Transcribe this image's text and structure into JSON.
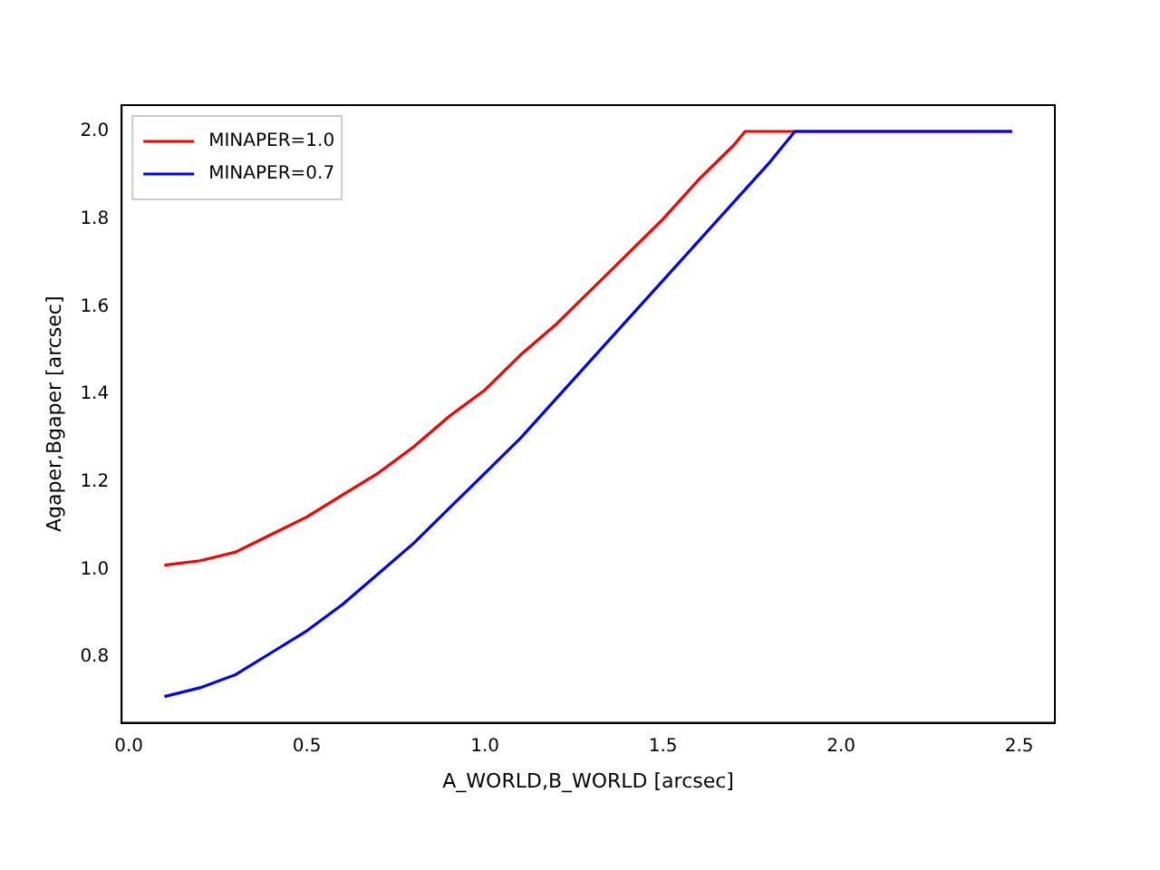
{
  "chart_data": {
    "type": "line",
    "xlabel": "A_WORLD,B_WORLD [arcsec]",
    "ylabel": "Agaper,Bgaper [arcsec]",
    "series": [
      {
        "name": "MINAPER=1.0",
        "color": "#ff0000",
        "x": [
          0.1,
          0.2,
          0.3,
          0.4,
          0.5,
          0.6,
          0.7,
          0.8,
          0.9,
          1.0,
          1.1,
          1.2,
          1.3,
          1.4,
          1.5,
          1.6,
          1.7,
          1.73,
          2.48
        ],
        "values": [
          1.01,
          1.02,
          1.04,
          1.08,
          1.12,
          1.17,
          1.22,
          1.28,
          1.35,
          1.41,
          1.49,
          1.56,
          1.64,
          1.72,
          1.8,
          1.89,
          1.97,
          2.0,
          2.0
        ]
      },
      {
        "name": "MINAPER=0.7",
        "color": "#0000ff",
        "x": [
          0.1,
          0.2,
          0.3,
          0.4,
          0.5,
          0.6,
          0.7,
          0.8,
          0.9,
          1.0,
          1.1,
          1.2,
          1.3,
          1.4,
          1.5,
          1.6,
          1.7,
          1.8,
          1.87,
          2.48
        ],
        "values": [
          0.71,
          0.73,
          0.76,
          0.81,
          0.86,
          0.92,
          0.99,
          1.06,
          1.14,
          1.22,
          1.3,
          1.39,
          1.48,
          1.57,
          1.66,
          1.75,
          1.84,
          1.93,
          2.0,
          2.0
        ]
      }
    ],
    "xlim": [
      -0.02,
      2.6
    ],
    "xticks": [
      {
        "value": 0,
        "label": "0.0"
      },
      {
        "value": 0.5,
        "label": "0.5"
      },
      {
        "value": 1,
        "label": "1.0"
      },
      {
        "value": 1.5,
        "label": "1.5"
      },
      {
        "value": 2,
        "label": "2.0"
      },
      {
        "value": 2.5,
        "label": "2.5"
      }
    ],
    "ylim": [
      0.65,
      2.06
    ],
    "yticks": [
      0.8,
      {
        "value": 1,
        "label": "1.0"
      },
      1.2,
      1.4,
      1.6,
      1.8,
      {
        "value": 2,
        "label": "2.0"
      }
    ],
    "grid": false,
    "legend": "top left",
    "marker": "none",
    "line_style": "solid"
  }
}
